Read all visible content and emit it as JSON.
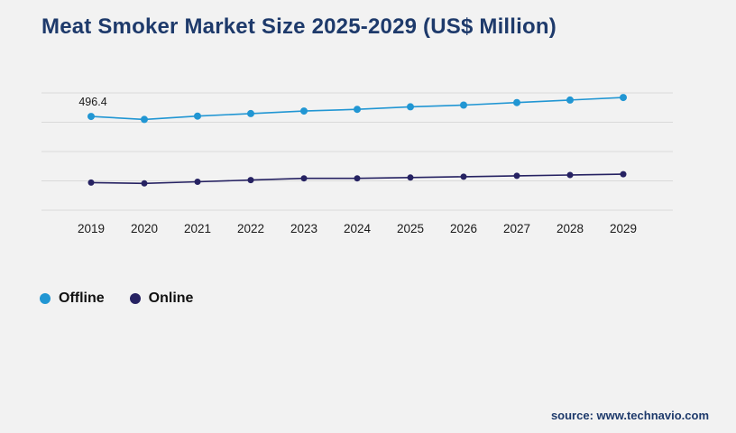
{
  "page": {
    "background_color": "#f2f2f2"
  },
  "chart_data": {
    "type": "line",
    "title": "Meat Smoker Market Size 2025-2029 (US$ Million)",
    "categories": [
      "2019",
      "2020",
      "2021",
      "2022",
      "2023",
      "2024",
      "2025",
      "2026",
      "2027",
      "2028",
      "2029"
    ],
    "series": [
      {
        "name": "Offline",
        "color": "#2196d3",
        "values": [
          496.4,
          481,
          498,
          511,
          524,
          533,
          546,
          555,
          568,
          581,
          594
        ]
      },
      {
        "name": "Online",
        "color": "#262262",
        "values": [
          156,
          152,
          160,
          169,
          178,
          178,
          182,
          186,
          191,
          195,
          199
        ]
      }
    ],
    "data_labels": [
      {
        "series_index": 0,
        "point_index": 0,
        "text": "496.4"
      }
    ],
    "xlabel": "",
    "ylabel": "",
    "ylim": [
      0,
      650
    ],
    "grid": true,
    "grid_color": "#d9d9d9",
    "tick_label_color": "#1a1a1a",
    "data_label_color": "#1a1a1a",
    "legend_position": "bottom-left"
  },
  "footer": {
    "source": "source: www.technavio.com"
  },
  "colors": {
    "title": "#1e3a6b",
    "offline": "#2196d3",
    "online": "#262262"
  }
}
